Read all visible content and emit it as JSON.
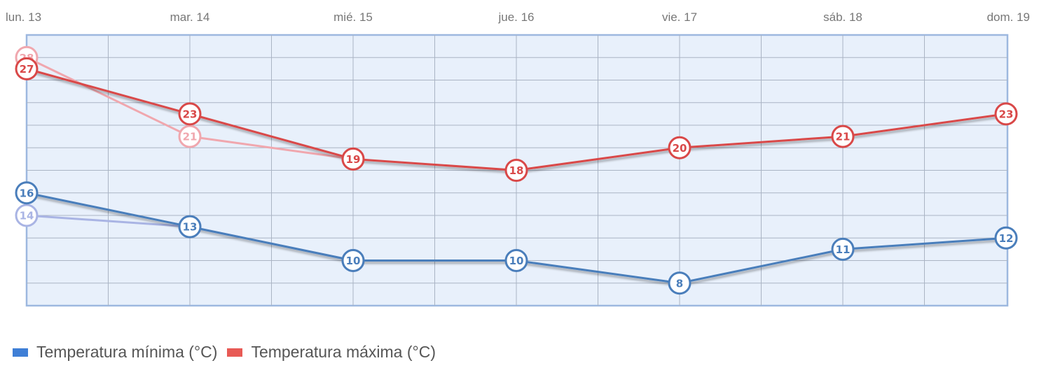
{
  "chart_data": {
    "type": "line",
    "categories": [
      "lun. 13",
      "mar. 14",
      "mié. 15",
      "jue. 16",
      "vie. 17",
      "sáb. 18",
      "dom. 19"
    ],
    "ylim": [
      6,
      30
    ],
    "grid": true,
    "legend_position": "bottom-left",
    "series": [
      {
        "name": "Temperatura mínima (°C)",
        "values": [
          16,
          13,
          10,
          10,
          8,
          11,
          12
        ],
        "color": "#4a7ebb",
        "legend_color": "#3f7fd6"
      },
      {
        "name": "Temperatura máxima (°C)",
        "values": [
          27,
          23,
          19,
          18,
          20,
          21,
          23
        ],
        "color": "#d94848",
        "legend_color": "#e85a55"
      }
    ],
    "previous_series": [
      {
        "values": [
          14,
          13,
          10
        ],
        "color": "#a9b4e4"
      },
      {
        "values": [
          28,
          21,
          19
        ],
        "color": "#f0a7ae"
      }
    ],
    "colors": {
      "plot_background": "#e8f0fb",
      "plot_border": "#9db8df",
      "grid": "#aab4c4"
    }
  }
}
